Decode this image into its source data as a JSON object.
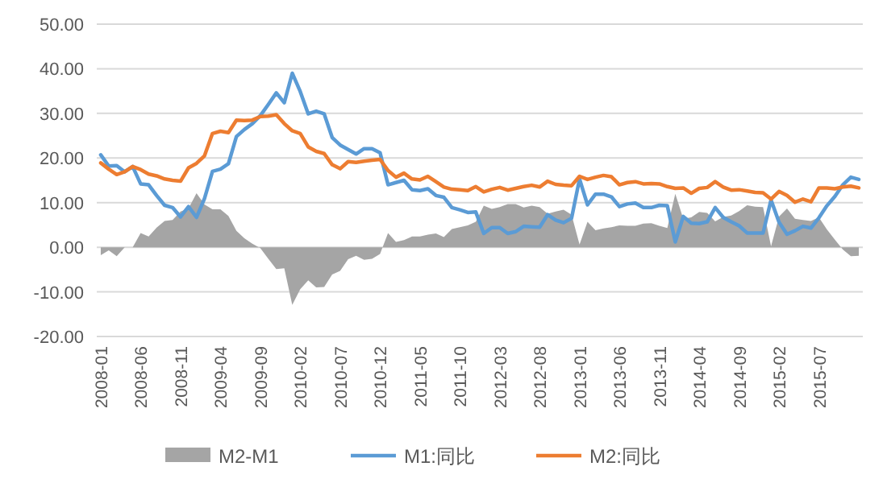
{
  "chart_data": {
    "type": "line",
    "categories": [
      "2008-01",
      null,
      null,
      null,
      null,
      "2008-06",
      null,
      null,
      null,
      null,
      "2008-11",
      null,
      null,
      null,
      null,
      "2009-04",
      null,
      null,
      null,
      null,
      "2009-09",
      null,
      null,
      null,
      null,
      "2010-02",
      null,
      null,
      null,
      null,
      "2010-07",
      null,
      null,
      null,
      null,
      "2010-12",
      null,
      null,
      null,
      null,
      "2011-05",
      null,
      null,
      null,
      null,
      "2011-10",
      null,
      null,
      null,
      null,
      "2012-03",
      null,
      null,
      null,
      null,
      "2012-08",
      null,
      null,
      null,
      null,
      "2013-01",
      null,
      null,
      null,
      null,
      "2013-06",
      null,
      null,
      null,
      null,
      "2013-11",
      null,
      null,
      null,
      null,
      "2014-04",
      null,
      null,
      null,
      null,
      "2014-09",
      null,
      null,
      null,
      null,
      "2015-02",
      null,
      null,
      null,
      null,
      "2015-07",
      null,
      null,
      null,
      null,
      null
    ],
    "series": [
      {
        "name": "M2-M1",
        "type": "area",
        "color": "#a5a5a5",
        "values": [
          -1.8,
          -0.7,
          -2.0,
          0.0,
          0.0,
          3.2,
          2.4,
          4.4,
          5.9,
          6.1,
          8.0,
          8.7,
          12.1,
          9.6,
          8.5,
          8.5,
          7.0,
          3.7,
          2.0,
          0.8,
          -0.2,
          -2.6,
          -4.9,
          -4.7,
          -12.9,
          -9.4,
          -7.4,
          -9.0,
          -8.9,
          -6.1,
          -5.3,
          -2.7,
          -1.9,
          -2.8,
          -2.6,
          -1.5,
          3.2,
          1.2,
          1.6,
          2.4,
          2.4,
          2.8,
          3.1,
          2.3,
          4.1,
          4.5,
          4.9,
          5.7,
          9.3,
          8.6,
          9.0,
          9.7,
          9.7,
          8.9,
          9.3,
          9.0,
          7.5,
          8.0,
          8.4,
          7.3,
          0.6,
          5.7,
          3.8,
          4.2,
          4.5,
          4.9,
          4.8,
          4.8,
          5.3,
          5.4,
          4.8,
          4.3,
          12.0,
          6.4,
          6.7,
          7.9,
          7.7,
          5.8,
          6.8,
          7.1,
          8.1,
          9.4,
          9.1,
          9.0,
          0.2,
          6.9,
          8.7,
          6.4,
          6.1,
          5.9,
          6.7,
          4.0,
          1.7,
          -0.5,
          -2.0,
          -1.9
        ]
      },
      {
        "name": "M1:同比",
        "color": "#5b9bd5",
        "values": [
          20.7,
          18.2,
          18.3,
          16.9,
          18.1,
          14.2,
          14.0,
          11.6,
          9.4,
          8.9,
          6.8,
          9.1,
          6.7,
          10.9,
          17.0,
          17.5,
          18.7,
          24.8,
          26.4,
          27.7,
          29.5,
          32.0,
          34.6,
          32.4,
          39.0,
          34.9,
          29.9,
          30.5,
          29.9,
          24.6,
          22.9,
          21.9,
          20.9,
          22.1,
          22.1,
          21.2,
          14.0,
          14.5,
          15.0,
          12.9,
          12.7,
          13.1,
          11.6,
          11.2,
          8.9,
          8.4,
          7.8,
          7.9,
          3.1,
          4.4,
          4.4,
          3.1,
          3.5,
          4.7,
          4.6,
          4.5,
          7.3,
          6.1,
          5.5,
          6.5,
          15.3,
          9.5,
          11.9,
          11.9,
          11.3,
          9.1,
          9.7,
          9.9,
          8.9,
          8.9,
          9.4,
          9.3,
          1.2,
          6.9,
          5.4,
          5.3,
          5.7,
          8.9,
          6.7,
          5.7,
          4.8,
          3.2,
          3.2,
          3.2,
          10.6,
          5.6,
          2.9,
          3.7,
          4.7,
          4.3,
          6.6,
          9.3,
          11.4,
          14.0,
          15.7,
          15.2
        ]
      },
      {
        "name": "M2:同比",
        "color": "#ed7d31",
        "values": [
          18.9,
          17.5,
          16.3,
          16.9,
          18.1,
          17.4,
          16.4,
          16.0,
          15.3,
          15.0,
          14.8,
          17.8,
          18.8,
          20.5,
          25.5,
          26.0,
          25.7,
          28.5,
          28.4,
          28.5,
          29.3,
          29.4,
          29.7,
          27.7,
          26.1,
          25.5,
          22.5,
          21.5,
          21.0,
          18.5,
          17.6,
          19.2,
          19.0,
          19.3,
          19.5,
          19.7,
          17.2,
          15.7,
          16.6,
          15.3,
          15.1,
          15.9,
          14.7,
          13.5,
          13.0,
          12.9,
          12.7,
          13.6,
          12.4,
          13.0,
          13.4,
          12.8,
          13.2,
          13.6,
          13.9,
          13.5,
          14.8,
          14.1,
          13.9,
          13.8,
          15.9,
          15.2,
          15.7,
          16.1,
          15.8,
          14.0,
          14.5,
          14.7,
          14.2,
          14.3,
          14.2,
          13.6,
          13.2,
          13.3,
          12.1,
          13.2,
          13.4,
          14.7,
          13.5,
          12.8,
          12.9,
          12.6,
          12.3,
          12.2,
          10.8,
          12.5,
          11.6,
          10.1,
          10.8,
          10.2,
          13.3,
          13.3,
          13.1,
          13.5,
          13.7,
          13.3
        ]
      }
    ],
    "ylim": [
      -20,
      50
    ],
    "yticks": [
      {
        "value": -20,
        "label": "-20.00"
      },
      {
        "value": -10,
        "label": "-10.00"
      },
      {
        "value": 0,
        "label": "0.00"
      },
      {
        "value": 10,
        "label": "10.00"
      },
      {
        "value": 20,
        "label": "20.00"
      },
      {
        "value": 30,
        "label": "30.00"
      },
      {
        "value": 40,
        "label": "40.00"
      },
      {
        "value": 50,
        "label": "50.00"
      }
    ],
    "grid": "y",
    "legend": "bottom",
    "line_style": "solid",
    "marker": "none"
  }
}
